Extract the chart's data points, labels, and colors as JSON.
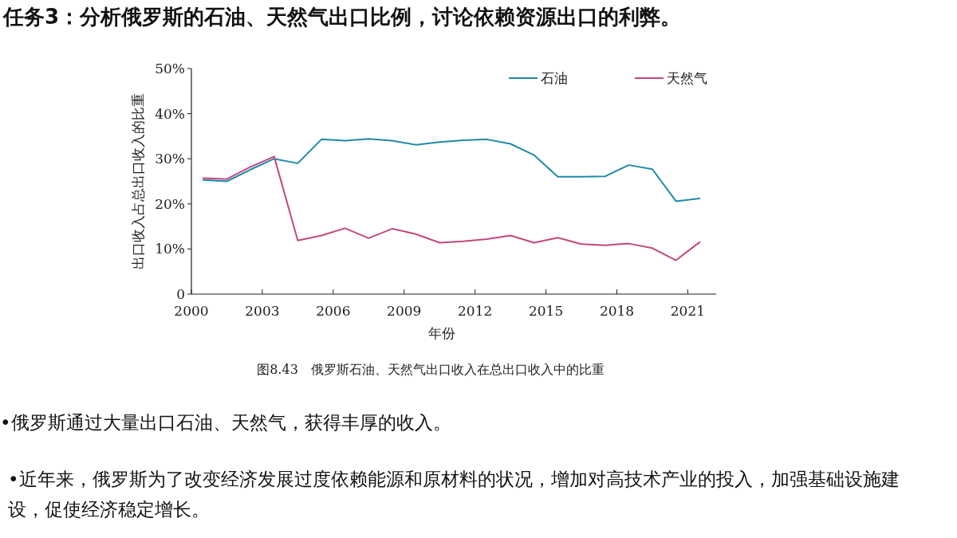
{
  "chart_data": {
    "type": "line",
    "title": "任务3：分析俄罗斯的石油、天然气出口比例，讨论依赖资源出口的利弊。",
    "xlabel": "年份",
    "ylabel": "出口收入占总出口收入的比重",
    "x": [
      2000.5,
      2001.5,
      2002.5,
      2003.5,
      2004.5,
      2005.5,
      2006.5,
      2007.5,
      2008.5,
      2009.5,
      2010.5,
      2011.5,
      2012.5,
      2013.5,
      2014.5,
      2015.5,
      2016.5,
      2017.5,
      2018.5,
      2019.5,
      2020.5,
      2021.5
    ],
    "series": [
      {
        "name": "石油",
        "color": "#1f8aa6",
        "values": [
          25.3,
          25.0,
          27.6,
          30.0,
          29.0,
          34.3,
          34.0,
          34.4,
          34.0,
          33.1,
          33.7,
          34.1,
          34.3,
          33.3,
          30.8,
          26.0,
          26.0,
          26.1,
          28.6,
          27.7,
          20.6,
          21.2
        ]
      },
      {
        "name": "天然气",
        "color": "#c2487c",
        "values": [
          25.7,
          25.5,
          28.2,
          30.5,
          11.9,
          13.0,
          14.6,
          12.4,
          14.5,
          13.3,
          11.4,
          11.7,
          12.2,
          13.0,
          11.4,
          12.5,
          11.1,
          10.8,
          11.2,
          10.2,
          7.5,
          11.5
        ]
      }
    ],
    "xlim": [
      2000,
      2022.2
    ],
    "xticks": [
      2000,
      2003,
      2006,
      2009,
      2012,
      2015,
      2018,
      2021
    ],
    "ylim": [
      0,
      50
    ],
    "yticks": [
      0,
      {
        "value": 10,
        "label": "10%"
      },
      {
        "value": 20,
        "label": "20%"
      },
      {
        "value": 30,
        "label": "30%"
      },
      {
        "value": 40,
        "label": "40%"
      },
      {
        "value": 50,
        "label": "50%"
      }
    ],
    "grid": false,
    "legend": "top right",
    "marker": "none",
    "line_style": "solid",
    "annotations": [
      "图8.43　俄罗斯石油、天然气出口收入在总出口收入中的比重",
      "•俄罗斯通过大量出口石油、天然气，获得丰厚的收入。",
      "•近年来，俄罗斯为了改变经济发展过度依赖能源和原材料的状况，增加对高技术产业的投入，加强基础设施建设，促使经济稳定增长。"
    ]
  }
}
